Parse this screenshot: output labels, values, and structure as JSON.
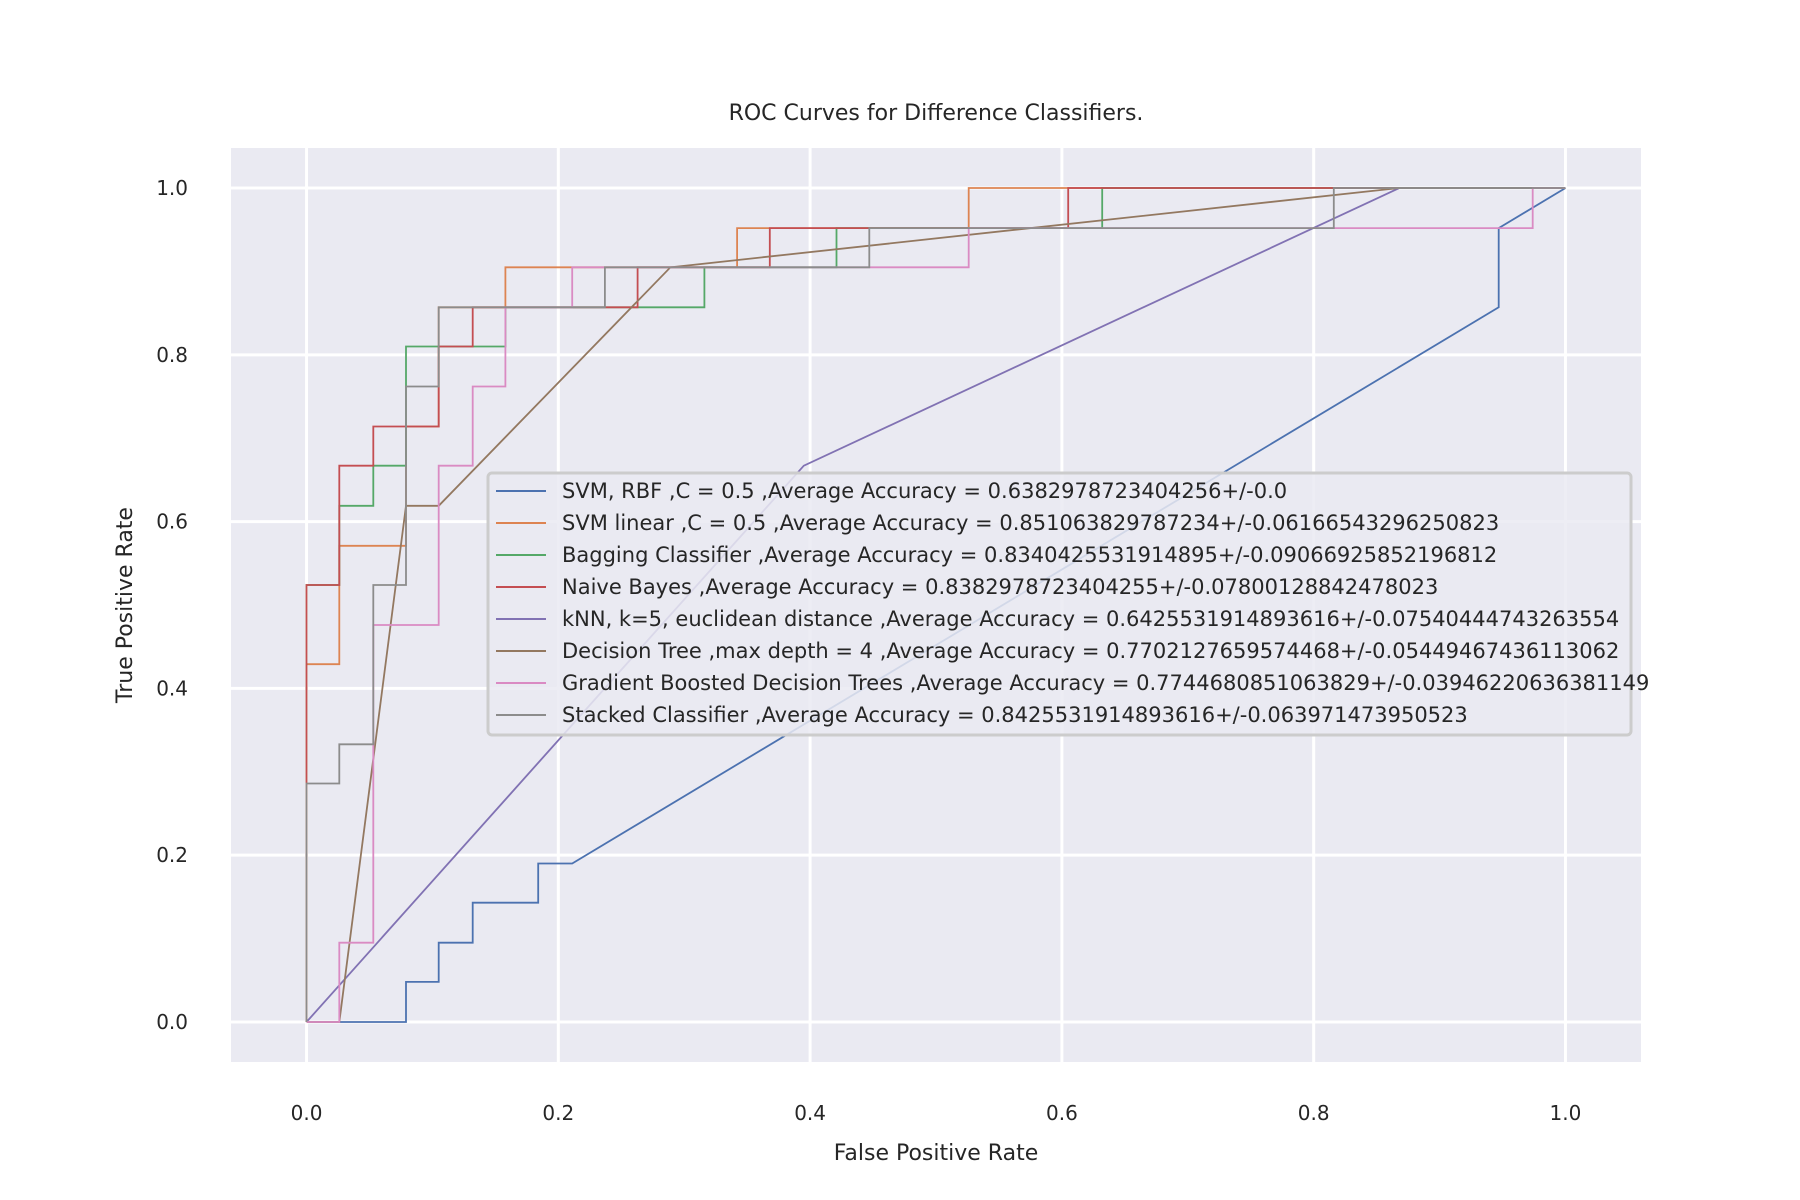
{
  "chart_data": {
    "type": "line",
    "title": "ROC Curves for Difference Classifiers.",
    "xlabel": "False Positive Rate",
    "ylabel": "True Positive Rate",
    "xlim": [
      -0.06,
      1.06
    ],
    "ylim": [
      -0.048,
      1.048
    ],
    "xticks": [
      "0.0",
      "0.2",
      "0.4",
      "0.6",
      "0.8",
      "1.0"
    ],
    "yticks": [
      "0.0",
      "0.2",
      "0.4",
      "0.6",
      "0.8",
      "1.0"
    ],
    "grid": true,
    "legend_position": "center-right",
    "series": [
      {
        "name": "SVM, RBF ,C = 0.5 ,Average Accuracy = 0.6382978723404256+/-0.0",
        "color": "#4c72b0",
        "x": [
          0.0,
          0.079,
          0.079,
          0.105,
          0.105,
          0.132,
          0.132,
          0.184,
          0.184,
          0.211,
          0.947,
          0.947,
          1.0
        ],
        "y": [
          0.0,
          0.0,
          0.048,
          0.048,
          0.095,
          0.095,
          0.143,
          0.143,
          0.19,
          0.19,
          0.857,
          0.952,
          1.0
        ]
      },
      {
        "name": "SVM linear ,C = 0.5 ,Average Accuracy = 0.851063829787234+/-0.06166543296250823",
        "color": "#dd8452",
        "x": [
          0.0,
          0.0,
          0.026,
          0.026,
          0.079,
          0.079,
          0.105,
          0.105,
          0.158,
          0.158,
          0.211,
          0.211,
          0.342,
          0.342,
          0.526,
          0.526,
          0.816,
          0.816,
          1.0
        ],
        "y": [
          0.0,
          0.429,
          0.429,
          0.571,
          0.571,
          0.714,
          0.714,
          0.857,
          0.857,
          0.905,
          0.905,
          0.905,
          0.905,
          0.952,
          0.952,
          1.0,
          1.0,
          1.0,
          1.0
        ]
      },
      {
        "name": "Bagging Classifier ,Average Accuracy = 0.8340425531914895+/-0.09066925852196812",
        "color": "#55a868",
        "x": [
          0.0,
          0.0,
          0.026,
          0.026,
          0.053,
          0.053,
          0.079,
          0.079,
          0.158,
          0.158,
          0.263,
          0.263,
          0.316,
          0.316,
          0.421,
          0.421,
          0.632,
          0.632,
          1.0
        ],
        "y": [
          0.0,
          0.524,
          0.524,
          0.619,
          0.619,
          0.667,
          0.667,
          0.81,
          0.81,
          0.857,
          0.857,
          0.857,
          0.857,
          0.905,
          0.905,
          0.952,
          0.952,
          1.0,
          1.0
        ]
      },
      {
        "name": "Naive Bayes ,Average Accuracy = 0.8382978723404255+/-0.07800128842478023",
        "color": "#c44e52",
        "x": [
          0.0,
          0.0,
          0.026,
          0.026,
          0.053,
          0.053,
          0.105,
          0.105,
          0.132,
          0.132,
          0.263,
          0.263,
          0.368,
          0.368,
          0.605,
          0.605,
          1.0
        ],
        "y": [
          0.0,
          0.524,
          0.524,
          0.667,
          0.667,
          0.714,
          0.714,
          0.81,
          0.81,
          0.857,
          0.857,
          0.905,
          0.905,
          0.952,
          0.952,
          1.0,
          1.0
        ]
      },
      {
        "name": "kNN, k=5, euclidean distance ,Average Accuracy = 0.6425531914893616+/-0.07540444743263554",
        "color": "#8172b3",
        "x": [
          0.0,
          0.395,
          0.868,
          1.0
        ],
        "y": [
          0.0,
          0.667,
          1.0,
          1.0
        ]
      },
      {
        "name": "Decision Tree ,max depth = 4 ,Average Accuracy = 0.7702127659574468+/-0.05449467436113062",
        "color": "#937860",
        "x": [
          0.0,
          0.026,
          0.079,
          0.105,
          0.289,
          0.868,
          1.0
        ],
        "y": [
          0.0,
          0.0,
          0.619,
          0.619,
          0.905,
          1.0,
          1.0
        ]
      },
      {
        "name": "Gradient Boosted Decision Trees ,Average Accuracy = 0.7744680851063829+/-0.03946220636381149",
        "color": "#da8bc3",
        "x": [
          0.0,
          0.026,
          0.026,
          0.053,
          0.053,
          0.105,
          0.105,
          0.132,
          0.132,
          0.158,
          0.158,
          0.211,
          0.211,
          0.526,
          0.526,
          0.816,
          0.816,
          0.974,
          0.974,
          1.0
        ],
        "y": [
          0.0,
          0.0,
          0.095,
          0.095,
          0.476,
          0.476,
          0.667,
          0.667,
          0.762,
          0.762,
          0.857,
          0.857,
          0.905,
          0.905,
          0.952,
          0.952,
          0.952,
          0.952,
          1.0,
          1.0
        ]
      },
      {
        "name": "Stacked Classifier ,Average Accuracy = 0.8425531914893616+/-0.063971473950523",
        "color": "#8c8c8c",
        "x": [
          0.0,
          0.0,
          0.026,
          0.026,
          0.053,
          0.053,
          0.079,
          0.079,
          0.105,
          0.105,
          0.237,
          0.237,
          0.447,
          0.447,
          0.816,
          0.816,
          1.0
        ],
        "y": [
          0.0,
          0.286,
          0.286,
          0.333,
          0.333,
          0.524,
          0.524,
          0.762,
          0.762,
          0.857,
          0.857,
          0.905,
          0.905,
          0.952,
          0.952,
          1.0,
          1.0
        ]
      }
    ]
  }
}
